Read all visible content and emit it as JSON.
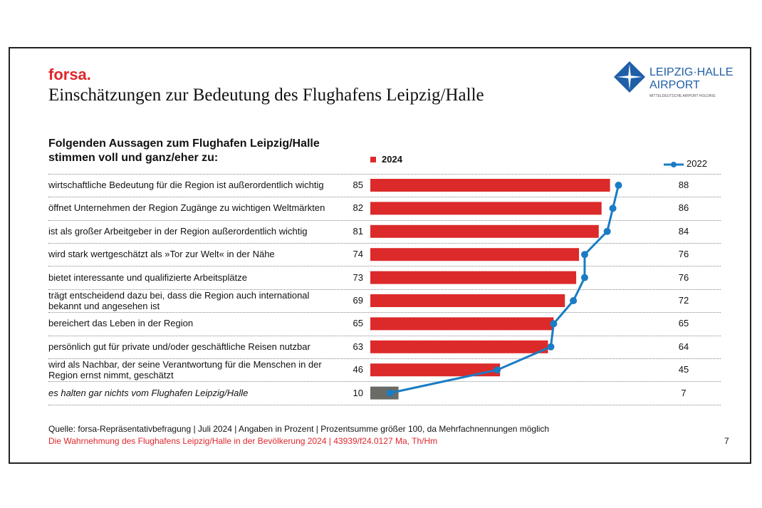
{
  "brand": "forsa.",
  "title": "Einschätzungen zur Bedeutung des Flughafens Leipzig/Halle",
  "logo": {
    "line1": "LEIPZIG·HALLE",
    "line2": "AIRPORT",
    "line3": "MITTELDEUTSCHE AIRPORT HOLDING",
    "color": "#1f5fa8"
  },
  "footer": {
    "source": "Quelle: forsa-Repräsentativbefragung | Juli 2024 | Angaben in Prozent | Prozentsumme größer 100, da Mehrfachnennungen möglich",
    "reference": "Die Wahrnehmung des Flughafens Leipzig/Halle in der Bevölkerung 2024 | 43939/f24.0127 Ma, Th/Hm",
    "page": "7"
  },
  "chart_data": {
    "type": "bar",
    "question": "Folgenden Aussagen zum Flughafen Leipzig/Halle stimmen voll und ganz/eher zu:",
    "categories": [
      "wirtschaftliche Bedeutung für die Region ist außerordentlich wichtig",
      "öffnet Unternehmen der Region Zugänge zu wichtigen Weltmärkten",
      "ist als großer Arbeitgeber in der Region außerordentlich wichtig",
      "wird stark wertgeschätzt als »Tor zur Welt« in der Nähe",
      "bietet interessante und qualifizierte Arbeitsplätze",
      "trägt entscheidend dazu bei, dass die Region auch international bekannt und angesehen ist",
      "bereichert das Leben in der Region",
      "persönlich gut für private und/oder geschäftliche Reisen nutzbar",
      "wird als Nachbar, der seine Verantwortung für die Menschen in der Region ernst nimmt, geschätzt",
      "es halten gar nichts vom Flughafen Leipzig/Halle"
    ],
    "series": [
      {
        "name": "2024",
        "type": "bar",
        "values": [
          85,
          82,
          81,
          74,
          73,
          69,
          65,
          63,
          46,
          10
        ],
        "color": "#dc2a2a",
        "last_color": "#6b6b66"
      },
      {
        "name": "2022",
        "type": "line",
        "values": [
          88,
          86,
          84,
          76,
          76,
          72,
          65,
          64,
          45,
          7
        ],
        "color": "#1a7cc4"
      }
    ],
    "unit": "%"
  }
}
